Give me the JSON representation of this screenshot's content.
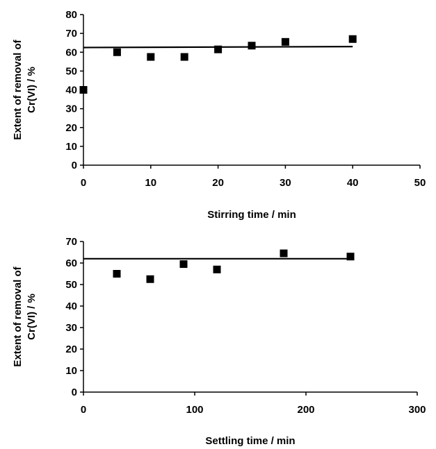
{
  "chart_data": [
    {
      "type": "scatter",
      "xlabel": "Stirring time / min",
      "ylabel": [
        "Extent of removal of",
        "Cr(VI) / %"
      ],
      "xlim": [
        0,
        50
      ],
      "ylim": [
        0,
        80
      ],
      "xticks": [
        0,
        10,
        20,
        30,
        40,
        50
      ],
      "yticks": [
        0,
        10,
        20,
        30,
        40,
        50,
        60,
        70,
        80
      ],
      "grid": false,
      "legend": "none",
      "series": [
        {
          "x": [
            0,
            5,
            10,
            15,
            20,
            25,
            30,
            40
          ],
          "y": [
            40,
            60,
            57.5,
            57.5,
            61.5,
            63.5,
            65.5,
            67
          ]
        }
      ],
      "reference_line": {
        "x": [
          0,
          40
        ],
        "y": [
          62.5,
          63
        ]
      }
    },
    {
      "type": "scatter",
      "xlabel": "Settling time / min",
      "ylabel": [
        "Extent of removal of",
        "Cr(VI) / %"
      ],
      "xlim": [
        0,
        300
      ],
      "ylim": [
        0,
        70
      ],
      "xticks": [
        0,
        100,
        200,
        300
      ],
      "yticks": [
        0,
        10,
        20,
        30,
        40,
        50,
        60,
        70
      ],
      "grid": false,
      "legend": "none",
      "series": [
        {
          "x": [
            30,
            60,
            90,
            120,
            180,
            240
          ],
          "y": [
            55,
            52.5,
            59.5,
            57,
            64.5,
            63
          ]
        }
      ],
      "reference_line": {
        "x": [
          0,
          240
        ],
        "y": [
          62,
          62
        ]
      }
    }
  ],
  "colors": {
    "marker": "#000000",
    "line": "#000000"
  }
}
